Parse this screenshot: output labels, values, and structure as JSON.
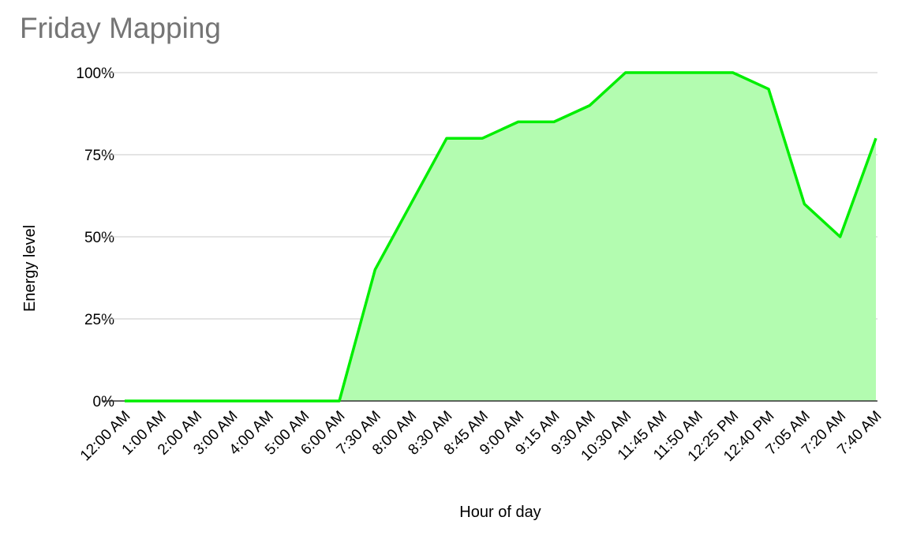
{
  "chart_data": {
    "type": "area",
    "title": "Friday Mapping",
    "x_label": "Hour of day",
    "y_label": "Energy level",
    "categories": [
      "12:00 AM",
      "1:00 AM",
      "2:00 AM",
      "3:00 AM",
      "4:00 AM",
      "5:00 AM",
      "6:00 AM",
      "7:30 AM",
      "8:00 AM",
      "8:30 AM",
      "8:45 AM",
      "9:00 AM",
      "9:15 AM",
      "9:30 AM",
      "10:30 AM",
      "11:45 AM",
      "11:50 AM",
      "12:25 PM",
      "12:40 PM",
      "7:05 AM",
      "7:20 AM",
      "7:40 AM"
    ],
    "values": [
      0,
      0,
      0,
      0,
      0,
      0,
      0,
      40,
      60,
      80,
      80,
      85,
      85,
      90,
      100,
      100,
      100,
      100,
      95,
      60,
      50,
      80
    ],
    "color": "#00ee00",
    "fill": "#b3fcb0",
    "ylim": [
      0,
      100
    ],
    "yticks": [
      {
        "value": 0,
        "label": "0%"
      },
      {
        "value": 25,
        "label": "25%"
      },
      {
        "value": 50,
        "label": "50%"
      },
      {
        "value": 75,
        "label": "75%"
      },
      {
        "value": 100,
        "label": "100%"
      }
    ],
    "grid": true
  }
}
